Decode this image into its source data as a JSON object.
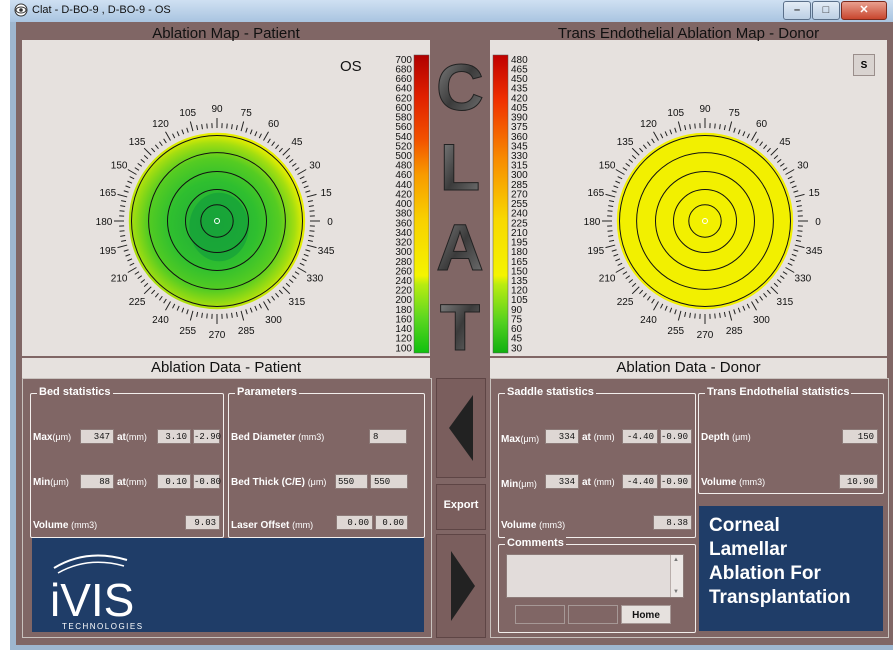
{
  "window": {
    "title": "Clat - D-BO-9 , D-BO-9 - OS",
    "controls": [
      "minimize",
      "maximize",
      "close"
    ]
  },
  "left_map": {
    "heading": "Ablation Map - Patient",
    "eye": "OS",
    "angle_labels": [
      "0",
      "15",
      "30",
      "45",
      "60",
      "75",
      "90",
      "105",
      "120",
      "135",
      "150",
      "165",
      "180",
      "195",
      "210",
      "225",
      "240",
      "255",
      "270",
      "285",
      "300",
      "315",
      "330",
      "345"
    ],
    "scale_labels": [
      "700",
      "680",
      "660",
      "640",
      "620",
      "600",
      "580",
      "560",
      "540",
      "520",
      "500",
      "480",
      "460",
      "440",
      "420",
      "400",
      "380",
      "360",
      "340",
      "320",
      "300",
      "280",
      "260",
      "240",
      "220",
      "200",
      "180",
      "160",
      "140",
      "120",
      "100"
    ]
  },
  "right_map": {
    "heading": "Trans Endothelial Ablation Map - Donor",
    "s_button": "S",
    "angle_labels": [
      "0",
      "15",
      "30",
      "45",
      "60",
      "75",
      "90",
      "105",
      "120",
      "135",
      "150",
      "165",
      "180",
      "195",
      "210",
      "225",
      "240",
      "255",
      "270",
      "285",
      "300",
      "315",
      "330",
      "345"
    ],
    "scale_labels": [
      "480",
      "465",
      "450",
      "435",
      "420",
      "405",
      "390",
      "375",
      "360",
      "345",
      "330",
      "315",
      "300",
      "285",
      "270",
      "255",
      "240",
      "225",
      "210",
      "195",
      "180",
      "165",
      "150",
      "135",
      "120",
      "105",
      "90",
      "75",
      "60",
      "45",
      "30"
    ]
  },
  "clat_logo": [
    "C",
    "L",
    "A",
    "T"
  ],
  "patient_data": {
    "heading": "Ablation Data - Patient",
    "bed": {
      "title": "Bed statistics",
      "max_label": "Max",
      "min_label": "Min",
      "unit_um": "(μm)",
      "at_label": "at",
      "unit_mm": "(mm)",
      "max_value": "347",
      "max_x": "3.10",
      "max_y": "-2.90",
      "min_value": "88",
      "min_x": "0.10",
      "min_y": "-0.80",
      "volume_label": "Volume",
      "volume_unit": "(mm3)",
      "volume_value": "9.03"
    },
    "params": {
      "title": "Parameters",
      "diameter_label": "Bed Diameter",
      "diameter_unit": "(mm3)",
      "diameter_value": "8",
      "thick_label": "Bed Thick (C/E)",
      "thick_unit": "(μm)",
      "thick_c": "550",
      "thick_e": "550",
      "offset_label": "Laser Offset",
      "offset_unit": "(mm)",
      "offset_x": "0.00",
      "offset_y": "0.00"
    }
  },
  "export_label": "Export",
  "donor_data": {
    "heading": "Ablation Data - Donor",
    "saddle": {
      "title": "Saddle statistics",
      "max_label": "Max",
      "min_label": "Min",
      "unit_um": "(μm)",
      "at_label": "at",
      "unit_mm": "(mm)",
      "max_value": "334",
      "max_x": "-4.40",
      "max_y": "-0.90",
      "min_value": "334",
      "min_x": "-4.40",
      "min_y": "-0.90",
      "volume_label": "Volume",
      "volume_unit": "(mm3)",
      "volume_value": "8.38"
    },
    "trans": {
      "title": "Trans Endothelial statistics",
      "depth_label": "Depth",
      "depth_unit": "(μm)",
      "depth_value": "150",
      "volume_label": "Volume",
      "volume_unit": "(mm3)",
      "volume_value": "10.90"
    },
    "comments_title": "Comments",
    "buttons": [
      "",
      "",
      "Home"
    ]
  },
  "ivis": {
    "brand": "iVIS",
    "sub": "TECHNOLOGIES"
  },
  "corneal": [
    "Corneal",
    "Lamellar",
    "Ablation For",
    "Transplantation"
  ],
  "colors": {
    "background": "#806665",
    "panel": "#e6e1de",
    "brand_blue": "#1f3d68",
    "map_yellow": "#f0f000",
    "map_green": "#22bb22"
  }
}
